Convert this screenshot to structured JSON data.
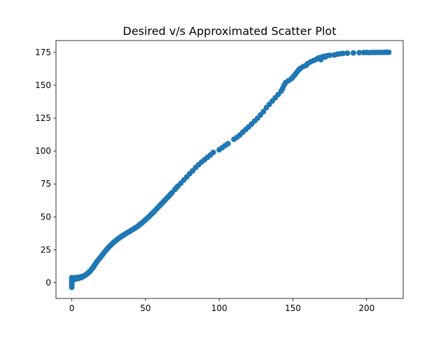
{
  "chart_data": {
    "type": "scatter",
    "title": "Desired v/s Approximated Scatter Plot",
    "xlabel": "",
    "ylabel": "",
    "xlim": [
      -10.7,
      224.8
    ],
    "ylim": [
      -12.0,
      184.0
    ],
    "xticks": [
      0,
      50,
      100,
      150,
      200
    ],
    "yticks": [
      0,
      25,
      50,
      75,
      100,
      125,
      150,
      175
    ],
    "grid": false,
    "legend": "none",
    "marker_color": "#1f77b4",
    "points": [
      [
        0,
        -3.5
      ],
      [
        0,
        -2.5
      ],
      [
        0,
        -1.0
      ],
      [
        0,
        0.2
      ],
      [
        0,
        1.2
      ],
      [
        0,
        2.0
      ],
      [
        0,
        3.0
      ],
      [
        0,
        3.8
      ],
      [
        0.5,
        2.5
      ],
      [
        1,
        3.2
      ],
      [
        1.5,
        3.5
      ],
      [
        2,
        3.8
      ],
      [
        2.5,
        2.6
      ],
      [
        3,
        3.5
      ],
      [
        3.5,
        3.8
      ],
      [
        4,
        4.0
      ],
      [
        4.5,
        3.2
      ],
      [
        5,
        4.0
      ],
      [
        5.5,
        4.2
      ],
      [
        6,
        4.4
      ],
      [
        6.5,
        3.8
      ],
      [
        7,
        4.5
      ],
      [
        7.5,
        4.8
      ],
      [
        8,
        5.0
      ],
      [
        8.5,
        5.2
      ],
      [
        9,
        5.6
      ],
      [
        9.5,
        6.0
      ],
      [
        10,
        6.3
      ],
      [
        10.5,
        6.8
      ],
      [
        11,
        7.2
      ],
      [
        11.5,
        7.8
      ],
      [
        12,
        8.3
      ],
      [
        12.5,
        8.8
      ],
      [
        13,
        9.6
      ],
      [
        13.5,
        10.2
      ],
      [
        14,
        11.0
      ],
      [
        14.5,
        11.6
      ],
      [
        15,
        12.5
      ],
      [
        15.5,
        13.4
      ],
      [
        16,
        14.2
      ],
      [
        16.5,
        15.0
      ],
      [
        17,
        16.0
      ],
      [
        18,
        17.2
      ],
      [
        19,
        18.6
      ],
      [
        20,
        20.0
      ],
      [
        21,
        21.5
      ],
      [
        22,
        23.0
      ],
      [
        23,
        24.3
      ],
      [
        24,
        25.6
      ],
      [
        25,
        26.9
      ],
      [
        26,
        28.0
      ],
      [
        27,
        29.2
      ],
      [
        28,
        30.2
      ],
      [
        29,
        31.2
      ],
      [
        30,
        32.0
      ],
      [
        31,
        33.0
      ],
      [
        32,
        33.8
      ],
      [
        33,
        34.6
      ],
      [
        34,
        35.4
      ],
      [
        35,
        36.0
      ],
      [
        36,
        36.8
      ],
      [
        37,
        37.5
      ],
      [
        38,
        38.2
      ],
      [
        39,
        38.8
      ],
      [
        40,
        39.5
      ],
      [
        41,
        40.2
      ],
      [
        42,
        40.8
      ],
      [
        43,
        41.6
      ],
      [
        44,
        42.3
      ],
      [
        45,
        43.1
      ],
      [
        46,
        44.0
      ],
      [
        47,
        44.9
      ],
      [
        48,
        45.8
      ],
      [
        49,
        46.8
      ],
      [
        50,
        47.8
      ],
      [
        51,
        48.8
      ],
      [
        52,
        49.8
      ],
      [
        53,
        50.9
      ],
      [
        54,
        52.0
      ],
      [
        55,
        53.1
      ],
      [
        56,
        54.2
      ],
      [
        57,
        55.4
      ],
      [
        58,
        56.6
      ],
      [
        59,
        57.8
      ],
      [
        60,
        58.9
      ],
      [
        61,
        60.1
      ],
      [
        62,
        61.3
      ],
      [
        63,
        62.5
      ],
      [
        64,
        63.6
      ],
      [
        65,
        64.8
      ],
      [
        66,
        66.0
      ],
      [
        67,
        67.2
      ],
      [
        68,
        68.4
      ],
      [
        70,
        70.9
      ],
      [
        71,
        72.2
      ],
      [
        72,
        73.4
      ],
      [
        74,
        75.6
      ],
      [
        76,
        78.0
      ],
      [
        78,
        80.4
      ],
      [
        80,
        82.8
      ],
      [
        82,
        85.0
      ],
      [
        84,
        87.5
      ],
      [
        86,
        89.6
      ],
      [
        88,
        91.6
      ],
      [
        90,
        93.4
      ],
      [
        92,
        95.2
      ],
      [
        94,
        97.0
      ],
      [
        96,
        99.0
      ],
      [
        100,
        101.0
      ],
      [
        102,
        102.6
      ],
      [
        104,
        104.2
      ],
      [
        106,
        105.6
      ],
      [
        110,
        109.0
      ],
      [
        112,
        110.4
      ],
      [
        114,
        112.2
      ],
      [
        116,
        114.4
      ],
      [
        118,
        116.4
      ],
      [
        120,
        118.4
      ],
      [
        122,
        120.6
      ],
      [
        124,
        122.8
      ],
      [
        126,
        125.0
      ],
      [
        128,
        127.5
      ],
      [
        130,
        130.0
      ],
      [
        132,
        133.0
      ],
      [
        134,
        135.5
      ],
      [
        136,
        138.0
      ],
      [
        138,
        140.5
      ],
      [
        140,
        143.0
      ],
      [
        142,
        145.5
      ],
      [
        143,
        147.5
      ],
      [
        144,
        150.0
      ],
      [
        145,
        152.0
      ],
      [
        147,
        153.5
      ],
      [
        149,
        155.0
      ],
      [
        150,
        156.2
      ],
      [
        151,
        157.6
      ],
      [
        152,
        159.0
      ],
      [
        153,
        160.4
      ],
      [
        154,
        161.8
      ],
      [
        155,
        162.8
      ],
      [
        157,
        164.2
      ],
      [
        159,
        165.2
      ],
      [
        160,
        166.5
      ],
      [
        162,
        167.8
      ],
      [
        164,
        168.8
      ],
      [
        166,
        169.8
      ],
      [
        167,
        170.4
      ],
      [
        168,
        171.0
      ],
      [
        169,
        169.5
      ],
      [
        170,
        171.6
      ],
      [
        171,
        172.0
      ],
      [
        172,
        171.5
      ],
      [
        173,
        172.4
      ],
      [
        175,
        172.8
      ],
      [
        178,
        173.0
      ],
      [
        180,
        173.6
      ],
      [
        182,
        174.0
      ],
      [
        184,
        174.2
      ],
      [
        187,
        174.4
      ],
      [
        191,
        174.6
      ],
      [
        195,
        174.8
      ],
      [
        198,
        174.9
      ],
      [
        200,
        175.0
      ],
      [
        202,
        174.8
      ],
      [
        204,
        175.0
      ],
      [
        206,
        174.9
      ],
      [
        208,
        175.0
      ],
      [
        210,
        175.0
      ],
      [
        212,
        175.0
      ],
      [
        213,
        175.2
      ],
      [
        214,
        175.0
      ],
      [
        215,
        175.1
      ]
    ]
  }
}
